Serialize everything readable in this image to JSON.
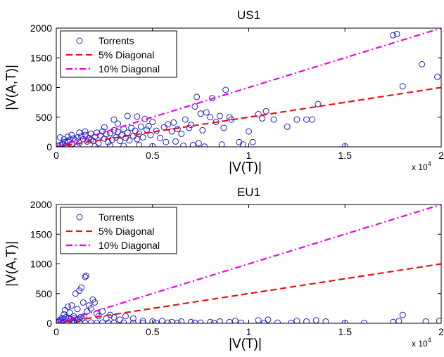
{
  "chart_data": [
    {
      "type": "scatter",
      "title": "US1",
      "xlabel": "|V(T)|",
      "ylabel": "|V(A,T)|",
      "x_multiplier": "x 10",
      "x_multiplier_exp": "4",
      "xlim": [
        0,
        20000
      ],
      "ylim": [
        0,
        2000
      ],
      "xticks": [
        "0",
        "0.5",
        "1",
        "1.5",
        "2"
      ],
      "yticks": [
        "0",
        "500",
        "1000",
        "1500",
        "2000"
      ],
      "legend": {
        "placement": "top-left",
        "entries": [
          "Torrents",
          "5% Diagonal",
          "10% Diagonal"
        ]
      },
      "series": [
        {
          "name": "Torrents",
          "kind": "scatter",
          "color": "#1f1fcc"
        },
        {
          "name": "5% Diagonal",
          "kind": "line",
          "slope": 0.05,
          "color": "#ee1111"
        },
        {
          "name": "10% Diagonal",
          "kind": "line",
          "slope": 0.1,
          "color": "#ee00ee"
        }
      ],
      "points": [
        [
          100,
          15
        ],
        [
          200,
          30
        ],
        [
          300,
          40
        ],
        [
          350,
          60
        ],
        [
          450,
          80
        ],
        [
          500,
          20
        ],
        [
          600,
          90
        ],
        [
          700,
          120
        ],
        [
          800,
          50
        ],
        [
          900,
          140
        ],
        [
          1000,
          110
        ],
        [
          1100,
          160
        ],
        [
          1200,
          70
        ],
        [
          1300,
          180
        ],
        [
          1400,
          130
        ],
        [
          1500,
          200
        ],
        [
          1600,
          90
        ],
        [
          1700,
          150
        ],
        [
          1800,
          220
        ],
        [
          1900,
          100
        ],
        [
          2000,
          170
        ],
        [
          2100,
          240
        ],
        [
          2200,
          60
        ],
        [
          2300,
          190
        ],
        [
          2400,
          260
        ],
        [
          2500,
          140
        ],
        [
          2600,
          210
        ],
        [
          2700,
          80
        ],
        [
          2800,
          230
        ],
        [
          2900,
          120
        ],
        [
          3000,
          280
        ],
        [
          3100,
          160
        ],
        [
          3200,
          250
        ],
        [
          3300,
          100
        ],
        [
          3400,
          200
        ],
        [
          3500,
          300
        ],
        [
          3600,
          150
        ],
        [
          3700,
          240
        ],
        [
          3800,
          110
        ],
        [
          3900,
          320
        ],
        [
          4000,
          180
        ],
        [
          4100,
          270
        ],
        [
          4200,
          130
        ],
        [
          4300,
          220
        ],
        [
          4400,
          340
        ],
        [
          4500,
          160
        ],
        [
          4600,
          470
        ],
        [
          4700,
          290
        ],
        [
          4800,
          350
        ],
        [
          4900,
          200
        ],
        [
          5000,
          420
        ],
        [
          5200,
          270
        ],
        [
          5400,
          150
        ],
        [
          5600,
          330
        ],
        [
          5800,
          380
        ],
        [
          6000,
          260
        ],
        [
          6100,
          410
        ],
        [
          6300,
          300
        ],
        [
          6500,
          220
        ],
        [
          6700,
          460
        ],
        [
          6900,
          320
        ],
        [
          7000,
          370
        ],
        [
          7200,
          680
        ],
        [
          7300,
          840
        ],
        [
          7500,
          560
        ],
        [
          7600,
          280
        ],
        [
          7800,
          580
        ],
        [
          8000,
          500
        ],
        [
          8100,
          820
        ],
        [
          8300,
          420
        ],
        [
          8500,
          520
        ],
        [
          8700,
          320
        ],
        [
          8800,
          960
        ],
        [
          9000,
          500
        ],
        [
          9100,
          460
        ],
        [
          9500,
          80
        ],
        [
          10000,
          260
        ],
        [
          10200,
          80
        ],
        [
          10500,
          550
        ],
        [
          10700,
          480
        ],
        [
          10900,
          600
        ],
        [
          11300,
          460
        ],
        [
          12000,
          340
        ],
        [
          12500,
          460
        ],
        [
          13000,
          460
        ],
        [
          13300,
          460
        ],
        [
          13600,
          720
        ],
        [
          15000,
          10
        ],
        [
          17500,
          1880
        ],
        [
          17700,
          1900
        ],
        [
          18000,
          1020
        ],
        [
          19000,
          1390
        ],
        [
          19800,
          1180
        ],
        [
          5700,
          80
        ],
        [
          6200,
          90
        ],
        [
          7100,
          30
        ],
        [
          7400,
          60
        ],
        [
          8600,
          40
        ],
        [
          200,
          160
        ],
        [
          400,
          130
        ],
        [
          600,
          170
        ],
        [
          800,
          200
        ],
        [
          1200,
          240
        ],
        [
          1500,
          260
        ],
        [
          1800,
          120
        ],
        [
          2500,
          330
        ],
        [
          3000,
          460
        ],
        [
          3200,
          390
        ],
        [
          3700,
          520
        ],
        [
          4200,
          510
        ],
        [
          600,
          5
        ],
        [
          1100,
          8
        ],
        [
          2000,
          10
        ],
        [
          2800,
          20
        ],
        [
          3500,
          15
        ],
        [
          4300,
          30
        ],
        [
          5000,
          12
        ],
        [
          6600,
          20
        ],
        [
          7700,
          5
        ],
        [
          9700,
          40
        ]
      ]
    },
    {
      "type": "scatter",
      "title": "EU1",
      "xlabel": "|V(T)|",
      "ylabel": "|V(A,T)|",
      "x_multiplier": "x 10",
      "x_multiplier_exp": "4",
      "xlim": [
        0,
        20000
      ],
      "ylim": [
        0,
        2000
      ],
      "xticks": [
        "0",
        "0.5",
        "1",
        "1.5",
        "2"
      ],
      "yticks": [
        "0",
        "500",
        "1000",
        "1500",
        "2000"
      ],
      "legend": {
        "placement": "top-left",
        "entries": [
          "Torrents",
          "5% Diagonal",
          "10% Diagonal"
        ]
      },
      "series": [
        {
          "name": "Torrents",
          "kind": "scatter",
          "color": "#1f1fcc"
        },
        {
          "name": "5% Diagonal",
          "kind": "line",
          "slope": 0.05,
          "color": "#ee1111"
        },
        {
          "name": "10% Diagonal",
          "kind": "line",
          "slope": 0.1,
          "color": "#ee00ee"
        }
      ],
      "points": [
        [
          100,
          20
        ],
        [
          200,
          60
        ],
        [
          300,
          90
        ],
        [
          400,
          150
        ],
        [
          450,
          220
        ],
        [
          500,
          100
        ],
        [
          600,
          280
        ],
        [
          700,
          180
        ],
        [
          800,
          300
        ],
        [
          900,
          120
        ],
        [
          1000,
          500
        ],
        [
          1100,
          240
        ],
        [
          1200,
          550
        ],
        [
          1300,
          600
        ],
        [
          1400,
          350
        ],
        [
          1500,
          780
        ],
        [
          1550,
          800
        ],
        [
          1600,
          200
        ],
        [
          1700,
          300
        ],
        [
          1800,
          250
        ],
        [
          1900,
          400
        ],
        [
          2000,
          350
        ],
        [
          2100,
          160
        ],
        [
          2200,
          120
        ],
        [
          2400,
          200
        ],
        [
          2600,
          80
        ],
        [
          2800,
          140
        ],
        [
          3000,
          100
        ],
        [
          3300,
          60
        ],
        [
          3600,
          120
        ],
        [
          4000,
          80
        ],
        [
          4500,
          40
        ],
        [
          5000,
          30
        ],
        [
          5500,
          40
        ],
        [
          6000,
          20
        ],
        [
          6500,
          30
        ],
        [
          7000,
          20
        ],
        [
          7500,
          10
        ],
        [
          8000,
          20
        ],
        [
          8500,
          30
        ],
        [
          9000,
          20
        ],
        [
          9300,
          40
        ],
        [
          10500,
          50
        ],
        [
          11000,
          60
        ],
        [
          12500,
          40
        ],
        [
          13000,
          30
        ],
        [
          13500,
          50
        ],
        [
          14000,
          30
        ],
        [
          17500,
          20
        ],
        [
          18000,
          140
        ],
        [
          17800,
          40
        ],
        [
          19200,
          30
        ],
        [
          19900,
          40
        ],
        [
          300,
          10
        ],
        [
          600,
          5
        ],
        [
          900,
          15
        ],
        [
          1200,
          10
        ],
        [
          1500,
          8
        ],
        [
          1800,
          12
        ],
        [
          2100,
          6
        ],
        [
          2400,
          10
        ],
        [
          2700,
          5
        ],
        [
          3000,
          8
        ],
        [
          3500,
          10
        ],
        [
          4000,
          6
        ],
        [
          4500,
          8
        ],
        [
          5200,
          5
        ],
        [
          5800,
          10
        ],
        [
          6300,
          6
        ],
        [
          7200,
          8
        ],
        [
          8200,
          5
        ],
        [
          9600,
          8
        ],
        [
          10800,
          5
        ],
        [
          11500,
          10
        ],
        [
          12200,
          6
        ],
        [
          15000,
          8
        ],
        [
          16000,
          5
        ],
        [
          150,
          40
        ],
        [
          250,
          30
        ],
        [
          350,
          60
        ],
        [
          550,
          40
        ],
        [
          650,
          80
        ],
        [
          750,
          70
        ],
        [
          850,
          50
        ],
        [
          950,
          90
        ],
        [
          1050,
          60
        ],
        [
          1150,
          70
        ],
        [
          1250,
          100
        ],
        [
          1350,
          80
        ],
        [
          1450,
          120
        ]
      ]
    }
  ]
}
